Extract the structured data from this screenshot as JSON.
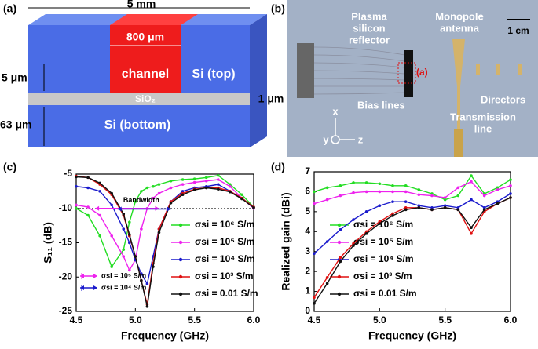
{
  "panel_labels": [
    "(a)",
    "(b)",
    "(c)",
    "(d)"
  ],
  "diagram": {
    "width_label": "5 mm",
    "channel_width": "800 μm",
    "channel": "channel",
    "top": "Si (top)",
    "oxide": "SiO₂",
    "oxide_thickness": "1 μm",
    "top_thickness": "5 μm",
    "bottom_thickness": "63 μm",
    "bottom": "Si (bottom)"
  },
  "photo": {
    "reflector": [
      "Plasma",
      "silicon",
      "reflector"
    ],
    "antenna": [
      "Monopole",
      "antenna"
    ],
    "scale": "1 cm",
    "inset_ref": "(a)",
    "bias": "Bias lines",
    "directors": "Directors",
    "line": [
      "Transmission",
      "line"
    ],
    "axis_x": "x",
    "axis_y": "y",
    "axis_z": "z"
  },
  "chart_data": [
    {
      "type": "line",
      "xlabel": "Frequency (GHz)",
      "ylabel": "S₁₁ (dB)",
      "xlim": [
        4.5,
        6.0
      ],
      "xticks": [
        4.5,
        {
          "value": 5,
          "label": "5.0"
        },
        5.5,
        {
          "value": 6,
          "label": "6.0"
        }
      ],
      "ylim": [
        -25,
        -5
      ],
      "yticks": [
        -5,
        -10,
        -15,
        -20,
        -25
      ],
      "legend": "lower right",
      "x": [
        4.5,
        4.6,
        4.7,
        4.8,
        4.9,
        4.95,
        5.0,
        5.05,
        5.1,
        5.15,
        5.2,
        5.3,
        5.4,
        5.5,
        5.6,
        5.7,
        5.8,
        5.9,
        6.0
      ],
      "series": [
        {
          "name": "σsi = 10⁶ S/m",
          "color": "#22dd22",
          "values": [
            -10,
            -11,
            -14,
            -18.5,
            -16,
            -12,
            -9,
            -7.5,
            -7,
            -6.8,
            -6.5,
            -6,
            -5.8,
            -5.7,
            -5.5,
            -5.2,
            -6.5,
            -8,
            -9.8
          ]
        },
        {
          "name": "σsi = 10⁵ S/m",
          "color": "#ee22ee",
          "values": [
            -9.5,
            -9.8,
            -11,
            -14,
            -17,
            -19,
            -17.5,
            -13,
            -10,
            -8.5,
            -7.8,
            -7,
            -6.5,
            -6.2,
            -6,
            -5.8,
            -6.8,
            -8.5,
            -10
          ]
        },
        {
          "name": "σsi = 10⁴ S/m",
          "color": "#1a1acc",
          "values": [
            -6.8,
            -7,
            -7.5,
            -9.5,
            -13,
            -15,
            -17.5,
            -19.5,
            -21,
            -17,
            -13,
            -9,
            -7.5,
            -7,
            -6.8,
            -6.5,
            -7.5,
            -8.5,
            -9.8
          ]
        },
        {
          "name": "σsi = 10³ S/m",
          "color": "#e01010",
          "values": [
            -5.3,
            -5.5,
            -6.5,
            -8,
            -11,
            -14,
            -17,
            -20.5,
            -24,
            -18,
            -13,
            -9,
            -7.8,
            -7.2,
            -7,
            -7,
            -7.5,
            -8.5,
            -9.8
          ]
        },
        {
          "name": "σsi = 0.01 S/m",
          "color": "#111111",
          "values": [
            -5.4,
            -5.5,
            -6.3,
            -7.8,
            -10.8,
            -13.8,
            -17,
            -20.5,
            -24.3,
            -18.5,
            -13.5,
            -9.2,
            -8,
            -7.3,
            -7,
            -7.2,
            -7.6,
            -8.6,
            -9.9
          ]
        }
      ],
      "hline": -10,
      "annotation": "Bandwidth",
      "bandwidth": [
        {
          "label": "σsi = 10⁵ S/m",
          "color": "#ee22ee",
          "x": [
            4.66,
            5.2
          ]
        },
        {
          "label": "σsi = 10⁴ S/m",
          "color": "#1a1acc",
          "x": [
            4.85,
            5.3
          ]
        }
      ]
    },
    {
      "type": "line",
      "xlabel": "Frequency (GHz)",
      "ylabel": "Realized gain (dBi)",
      "xlim": [
        4.5,
        6.0
      ],
      "xticks": [
        4.5,
        {
          "value": 5,
          "label": "5.0"
        },
        5.5,
        {
          "value": 6,
          "label": "6.0"
        }
      ],
      "ylim": [
        0,
        7
      ],
      "yticks": [
        0,
        1,
        2,
        3,
        4,
        5,
        6,
        7
      ],
      "legend": "lower left",
      "x": [
        4.5,
        4.6,
        4.7,
        4.8,
        4.9,
        5.0,
        5.1,
        5.2,
        5.3,
        5.4,
        5.5,
        5.6,
        5.7,
        5.8,
        5.9,
        6.0
      ],
      "series": [
        {
          "name": "σsi = 10⁶ S/m",
          "color": "#22dd22",
          "values": [
            6.0,
            6.2,
            6.3,
            6.45,
            6.45,
            6.4,
            6.3,
            6.3,
            6.1,
            5.9,
            5.6,
            5.8,
            6.8,
            5.9,
            6.2,
            6.6
          ]
        },
        {
          "name": "σsi = 10⁵ S/m",
          "color": "#ee22ee",
          "values": [
            5.4,
            5.6,
            5.8,
            5.95,
            6.0,
            6.0,
            6.0,
            6.0,
            5.85,
            5.8,
            5.7,
            6.2,
            6.5,
            5.8,
            6.1,
            6.3
          ]
        },
        {
          "name": "σsi = 10⁴ S/m",
          "color": "#1a1acc",
          "values": [
            2.9,
            3.5,
            4.1,
            4.6,
            5.0,
            5.3,
            5.5,
            5.5,
            5.3,
            5.2,
            5.3,
            5.2,
            5.6,
            5.2,
            5.5,
            5.9
          ]
        },
        {
          "name": "σsi = 10³ S/m",
          "color": "#e01010",
          "values": [
            0.7,
            1.7,
            2.7,
            3.4,
            4.0,
            4.5,
            4.9,
            5.2,
            5.2,
            5.1,
            5.2,
            5.1,
            3.9,
            5.0,
            5.4,
            5.7
          ]
        },
        {
          "name": "σsi = 0.01 S/m",
          "color": "#111111",
          "values": [
            0.4,
            1.4,
            2.5,
            3.3,
            3.9,
            4.4,
            4.8,
            5.1,
            5.2,
            5.1,
            5.2,
            5.1,
            4.2,
            5.1,
            5.4,
            5.7
          ]
        }
      ]
    }
  ]
}
